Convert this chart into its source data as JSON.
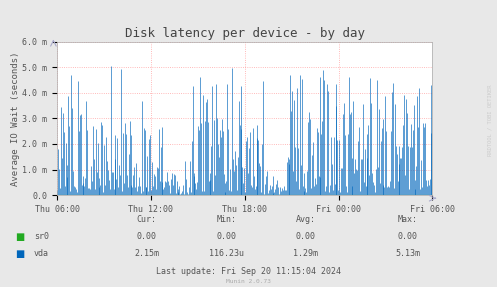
{
  "title": "Disk latency per device - by day",
  "ylabel": "Average IO Wait (seconds)",
  "background_color": "#e8e8e8",
  "plot_background": "#ffffff",
  "grid_color_x": "#ff9999",
  "grid_color_y": "#ff9999",
  "line_color_vda": "#0066bb",
  "line_color_sr0": "#22aa22",
  "ylim": [
    0.0,
    0.006
  ],
  "yticks": [
    0.0,
    0.001,
    0.002,
    0.003,
    0.004,
    0.005,
    0.006
  ],
  "ytick_labels": [
    "0.0",
    "1.0 m",
    "2.0 m",
    "3.0 m",
    "4.0 m",
    "5.0 m",
    "6.0 m"
  ],
  "xtick_labels": [
    "Thu 06:00",
    "Thu 12:00",
    "Thu 18:00",
    "Fri 00:00",
    "Fri 06:00"
  ],
  "legend_colors": [
    "#22aa22",
    "#0066bb"
  ],
  "footer_text": "Last update: Fri Sep 20 11:15:04 2024",
  "munin_text": "Munin 2.0.73",
  "stats_header": [
    "Cur:",
    "Min:",
    "Avg:",
    "Max:"
  ],
  "stats_sr0": [
    "0.00",
    "0.00",
    "0.00",
    "0.00"
  ],
  "stats_vda": [
    "2.15m",
    "116.23u",
    "1.29m",
    "5.13m"
  ],
  "watermark": "RRDTOOL / TOBI OETIKER",
  "title_fontsize": 9,
  "axis_label_fontsize": 6.5,
  "tick_fontsize": 6,
  "stats_fontsize": 6,
  "legend_fontsize": 6
}
